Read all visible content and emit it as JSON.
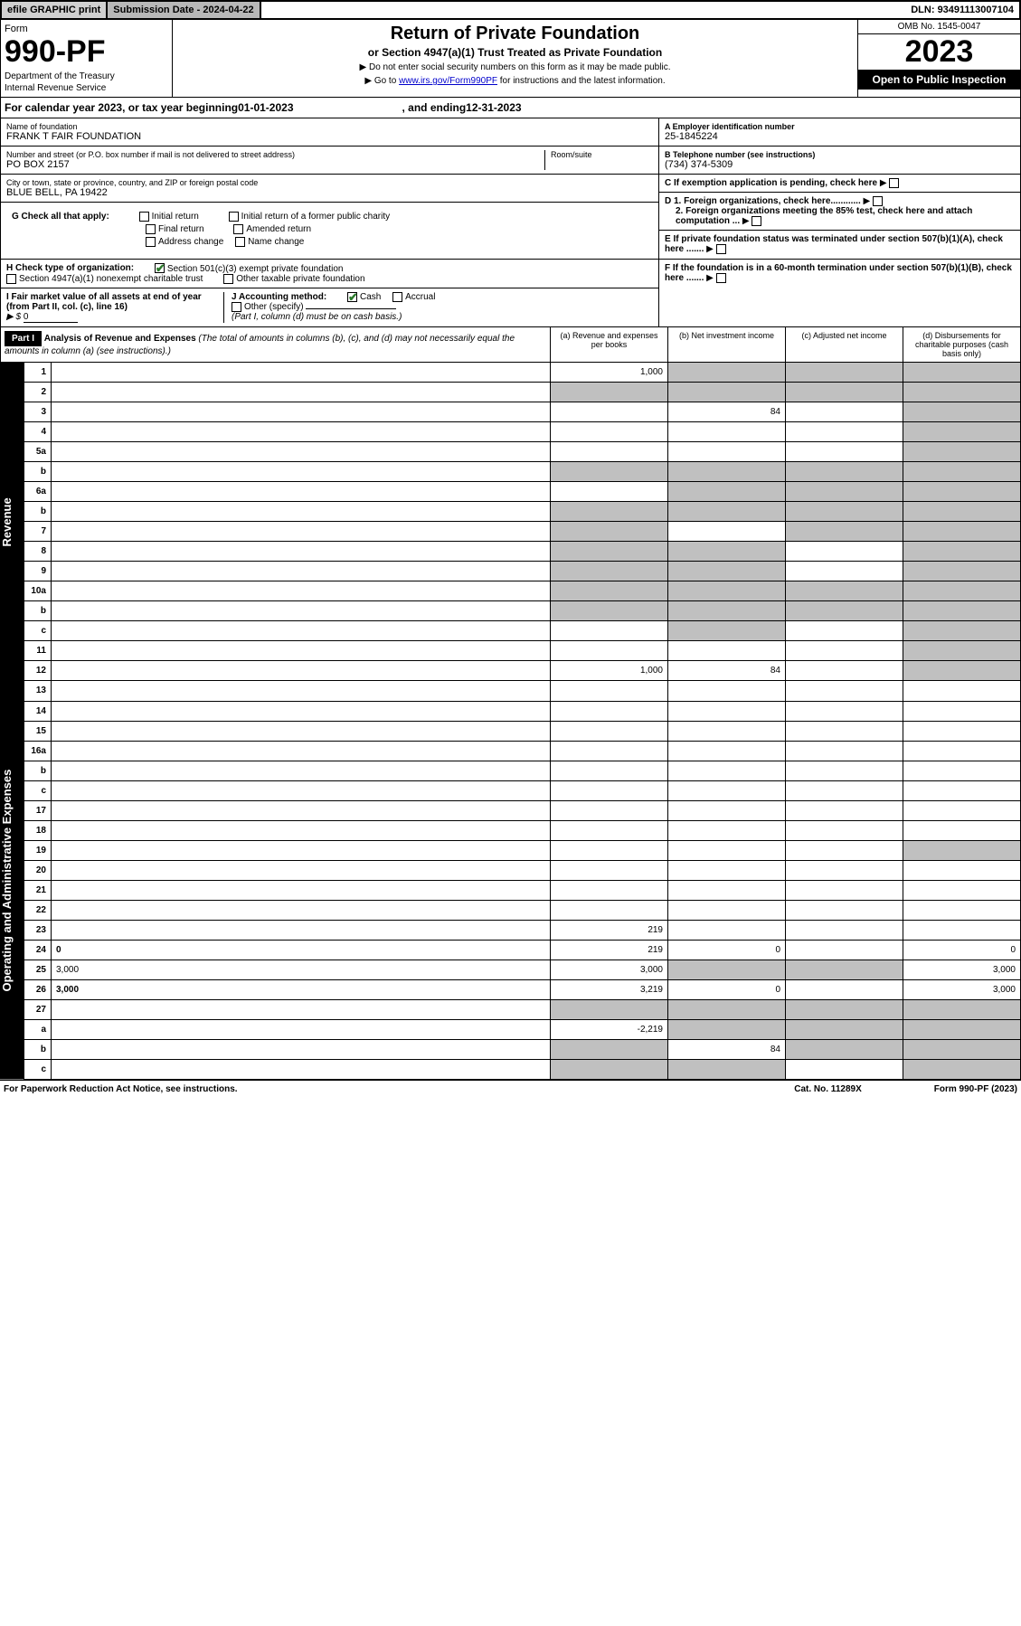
{
  "topbar": {
    "efile": "efile GRAPHIC print",
    "subdate_lbl": "Submission Date - ",
    "subdate": "2024-04-22",
    "dln_lbl": "DLN: ",
    "dln": "93491113007104"
  },
  "header": {
    "form_lbl": "Form",
    "form_no": "990-PF",
    "dept1": "Department of the Treasury",
    "dept2": "Internal Revenue Service",
    "title": "Return of Private Foundation",
    "subtitle": "or Section 4947(a)(1) Trust Treated as Private Foundation",
    "instr1": "▶ Do not enter social security numbers on this form as it may be made public.",
    "instr2_pre": "▶ Go to ",
    "instr2_link": "www.irs.gov/Form990PF",
    "instr2_post": " for instructions and the latest information.",
    "omb": "OMB No. 1545-0047",
    "year": "2023",
    "open": "Open to Public Inspection"
  },
  "calyear": {
    "pre": "For calendar year 2023, or tax year beginning ",
    "begin": "01-01-2023",
    "mid": " , and ending ",
    "end": "12-31-2023"
  },
  "info": {
    "name_lbl": "Name of foundation",
    "name": "FRANK T FAIR FOUNDATION",
    "addr_lbl": "Number and street (or P.O. box number if mail is not delivered to street address)",
    "addr": "PO BOX 2157",
    "room_lbl": "Room/suite",
    "city_lbl": "City or town, state or province, country, and ZIP or foreign postal code",
    "city": "BLUE BELL, PA  19422",
    "ein_lbl": "A Employer identification number",
    "ein": "25-1845224",
    "tel_lbl": "B Telephone number (see instructions)",
    "tel": "(734) 374-5309",
    "c_lbl": "C If exemption application is pending, check here",
    "d1_lbl": "D 1. Foreign organizations, check here............",
    "d2_lbl": "2. Foreign organizations meeting the 85% test, check here and attach computation ...",
    "e_lbl": "E If private foundation status was terminated under section 507(b)(1)(A), check here .......",
    "f_lbl": "F If the foundation is in a 60-month termination under section 507(b)(1)(B), check here .......",
    "g_lbl": "G Check all that apply:",
    "g_opts": [
      "Initial return",
      "Final return",
      "Address change",
      "Initial return of a former public charity",
      "Amended return",
      "Name change"
    ],
    "h_lbl": "H Check type of organization:",
    "h_opt1": "Section 501(c)(3) exempt private foundation",
    "h_opt2": "Section 4947(a)(1) nonexempt charitable trust",
    "h_opt3": "Other taxable private foundation",
    "i_lbl": "I Fair market value of all assets at end of year (from Part II, col. (c), line 16)",
    "i_val": "0",
    "j_lbl": "J Accounting method:",
    "j_cash": "Cash",
    "j_accrual": "Accrual",
    "j_other": "Other (specify)",
    "j_note": "(Part I, column (d) must be on cash basis.)"
  },
  "part1": {
    "hdr": "Part I",
    "title": "Analysis of Revenue and Expenses",
    "title_note": "(The total of amounts in columns (b), (c), and (d) may not necessarily equal the amounts in column (a) (see instructions).)",
    "col_a": "(a) Revenue and expenses per books",
    "col_b": "(b) Net investment income",
    "col_c": "(c) Adjusted net income",
    "col_d": "(d) Disbursements for charitable purposes (cash basis only)"
  },
  "sides": {
    "rev": "Revenue",
    "exp": "Operating and Administrative Expenses"
  },
  "rows": [
    {
      "n": "1",
      "d": "",
      "a": "1,000",
      "b": "",
      "c": "",
      "shade_b": true,
      "shade_c": true,
      "shade_d": true
    },
    {
      "n": "2",
      "d": "",
      "a": "",
      "b": "",
      "c": "",
      "shade_a": true,
      "shade_b": true,
      "shade_c": true,
      "shade_d": true
    },
    {
      "n": "3",
      "d": "",
      "a": "",
      "b": "84",
      "c": "",
      "shade_d": true
    },
    {
      "n": "4",
      "d": "",
      "a": "",
      "b": "",
      "c": "",
      "shade_d": true
    },
    {
      "n": "5a",
      "d": "",
      "a": "",
      "b": "",
      "c": "",
      "shade_d": true
    },
    {
      "n": "b",
      "d": "",
      "a": "",
      "b": "",
      "c": "",
      "shade_a": true,
      "shade_b": true,
      "shade_c": true,
      "shade_d": true
    },
    {
      "n": "6a",
      "d": "",
      "a": "",
      "b": "",
      "c": "",
      "shade_b": true,
      "shade_c": true,
      "shade_d": true
    },
    {
      "n": "b",
      "d": "",
      "a": "",
      "b": "",
      "c": "",
      "shade_a": true,
      "shade_b": true,
      "shade_c": true,
      "shade_d": true
    },
    {
      "n": "7",
      "d": "",
      "a": "",
      "b": "",
      "c": "",
      "shade_a": true,
      "shade_c": true,
      "shade_d": true
    },
    {
      "n": "8",
      "d": "",
      "a": "",
      "b": "",
      "c": "",
      "shade_a": true,
      "shade_b": true,
      "shade_d": true
    },
    {
      "n": "9",
      "d": "",
      "a": "",
      "b": "",
      "c": "",
      "shade_a": true,
      "shade_b": true,
      "shade_d": true
    },
    {
      "n": "10a",
      "d": "",
      "a": "",
      "b": "",
      "c": "",
      "shade_a": true,
      "shade_b": true,
      "shade_c": true,
      "shade_d": true
    },
    {
      "n": "b",
      "d": "",
      "a": "",
      "b": "",
      "c": "",
      "shade_a": true,
      "shade_b": true,
      "shade_c": true,
      "shade_d": true
    },
    {
      "n": "c",
      "d": "",
      "a": "",
      "b": "",
      "c": "",
      "shade_b": true,
      "shade_d": true
    },
    {
      "n": "11",
      "d": "",
      "a": "",
      "b": "",
      "c": "",
      "shade_d": true
    },
    {
      "n": "12",
      "d": "",
      "a": "1,000",
      "b": "84",
      "c": "",
      "bold": true,
      "shade_d": true
    }
  ],
  "rows2": [
    {
      "n": "13",
      "d": "",
      "a": "",
      "b": "",
      "c": ""
    },
    {
      "n": "14",
      "d": "",
      "a": "",
      "b": "",
      "c": ""
    },
    {
      "n": "15",
      "d": "",
      "a": "",
      "b": "",
      "c": ""
    },
    {
      "n": "16a",
      "d": "",
      "a": "",
      "b": "",
      "c": ""
    },
    {
      "n": "b",
      "d": "",
      "a": "",
      "b": "",
      "c": ""
    },
    {
      "n": "c",
      "d": "",
      "a": "",
      "b": "",
      "c": ""
    },
    {
      "n": "17",
      "d": "",
      "a": "",
      "b": "",
      "c": ""
    },
    {
      "n": "18",
      "d": "",
      "a": "",
      "b": "",
      "c": ""
    },
    {
      "n": "19",
      "d": "",
      "a": "",
      "b": "",
      "c": "",
      "shade_d": true
    },
    {
      "n": "20",
      "d": "",
      "a": "",
      "b": "",
      "c": ""
    },
    {
      "n": "21",
      "d": "",
      "a": "",
      "b": "",
      "c": ""
    },
    {
      "n": "22",
      "d": "",
      "a": "",
      "b": "",
      "c": ""
    },
    {
      "n": "23",
      "d": "",
      "a": "219",
      "b": "",
      "c": ""
    },
    {
      "n": "24",
      "d": "0",
      "a": "219",
      "b": "0",
      "c": "",
      "bold": true
    },
    {
      "n": "25",
      "d": "3,000",
      "a": "3,000",
      "b": "",
      "c": "",
      "shade_b": true,
      "shade_c": true
    },
    {
      "n": "26",
      "d": "3,000",
      "a": "3,219",
      "b": "0",
      "c": "",
      "bold": true
    },
    {
      "n": "27",
      "d": "",
      "a": "",
      "b": "",
      "c": "",
      "shade_a": true,
      "shade_b": true,
      "shade_c": true,
      "shade_d": true
    },
    {
      "n": "a",
      "d": "",
      "a": "-2,219",
      "b": "",
      "c": "",
      "bold": true,
      "shade_b": true,
      "shade_c": true,
      "shade_d": true
    },
    {
      "n": "b",
      "d": "",
      "a": "",
      "b": "84",
      "c": "",
      "bold": true,
      "shade_a": true,
      "shade_c": true,
      "shade_d": true
    },
    {
      "n": "c",
      "d": "",
      "a": "",
      "b": "",
      "c": "",
      "bold": true,
      "shade_a": true,
      "shade_b": true,
      "shade_d": true
    }
  ],
  "footer": {
    "left": "For Paperwork Reduction Act Notice, see instructions.",
    "mid": "Cat. No. 11289X",
    "right": "Form 990-PF (2023)"
  }
}
